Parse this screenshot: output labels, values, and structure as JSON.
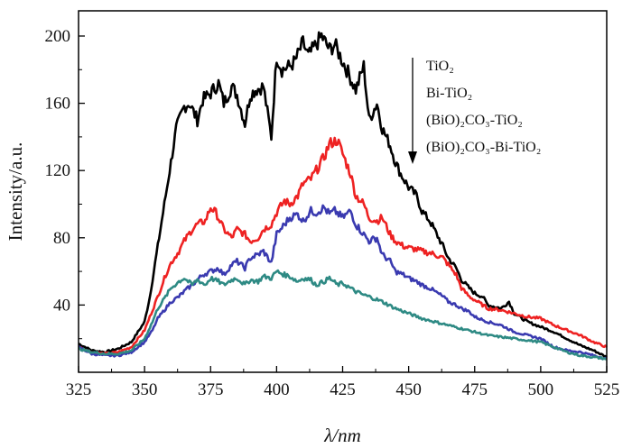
{
  "chart_data": {
    "type": "line",
    "xlabel": "λ/nm",
    "ylabel": "Intensity/a.u.",
    "xlim": [
      325,
      525
    ],
    "ylim": [
      0,
      215
    ],
    "xticks": [
      325,
      350,
      375,
      400,
      425,
      450,
      475,
      500,
      525
    ],
    "yticks": [
      40,
      80,
      120,
      160,
      200
    ],
    "legend_placement": "top-right",
    "legend_arrow": "down",
    "series": [
      {
        "name": "TiO₂",
        "color": "#000000",
        "x": [
          325,
          330,
          335,
          340,
          345,
          350,
          352,
          355,
          358,
          360,
          362,
          365,
          367,
          370,
          372,
          375,
          378,
          380,
          383,
          385,
          388,
          390,
          392,
          395,
          398,
          400,
          402,
          405,
          407,
          410,
          412,
          415,
          417,
          420,
          422,
          425,
          428,
          430,
          433,
          435,
          438,
          440,
          443,
          445,
          447,
          450,
          453,
          455,
          458,
          460,
          463,
          465,
          468,
          470,
          473,
          475,
          478,
          480,
          485,
          488,
          490,
          495,
          500,
          505,
          510,
          515,
          520,
          525
        ],
        "y": [
          17,
          13,
          12,
          14,
          18,
          30,
          45,
          75,
          105,
          125,
          145,
          158,
          160,
          150,
          162,
          166,
          172,
          160,
          170,
          165,
          148,
          165,
          168,
          170,
          140,
          188,
          180,
          182,
          185,
          196,
          188,
          195,
          200,
          192,
          195,
          185,
          175,
          168,
          182,
          150,
          160,
          145,
          135,
          125,
          118,
          110,
          105,
          96,
          90,
          84,
          75,
          68,
          62,
          55,
          50,
          47,
          45,
          40,
          38,
          42,
          35,
          30,
          27,
          24,
          20,
          16,
          13,
          9
        ]
      },
      {
        "name": "Bi-TiO₂",
        "color": "#ee2222",
        "x": [
          325,
          330,
          335,
          340,
          345,
          350,
          355,
          358,
          360,
          363,
          365,
          368,
          370,
          373,
          375,
          377,
          380,
          383,
          385,
          388,
          390,
          393,
          395,
          398,
          400,
          403,
          405,
          408,
          410,
          413,
          415,
          418,
          420,
          423,
          425,
          428,
          430,
          433,
          435,
          438,
          440,
          443,
          445,
          448,
          450,
          453,
          455,
          458,
          460,
          463,
          465,
          468,
          470,
          473,
          475,
          478,
          480,
          485,
          490,
          495,
          500,
          505,
          510,
          515,
          520,
          525
        ],
        "y": [
          15,
          12,
          11,
          12,
          15,
          25,
          45,
          58,
          65,
          72,
          78,
          85,
          88,
          90,
          98,
          95,
          85,
          80,
          85,
          82,
          78,
          80,
          85,
          88,
          95,
          102,
          100,
          105,
          112,
          115,
          120,
          128,
          136,
          138,
          130,
          118,
          105,
          100,
          92,
          90,
          92,
          82,
          78,
          75,
          74,
          73,
          72,
          71,
          70,
          68,
          64,
          58,
          50,
          45,
          43,
          40,
          38,
          37,
          35,
          33,
          32,
          28,
          25,
          22,
          18,
          15
        ]
      },
      {
        "name": "(BiO)₂CO₃-TiO₂",
        "color": "#3a3ab0",
        "x": [
          325,
          330,
          335,
          340,
          345,
          350,
          353,
          355,
          358,
          360,
          363,
          365,
          368,
          370,
          372,
          375,
          378,
          380,
          383,
          385,
          388,
          390,
          393,
          395,
          398,
          400,
          403,
          405,
          408,
          410,
          413,
          415,
          418,
          420,
          422,
          425,
          428,
          430,
          433,
          435,
          438,
          440,
          443,
          445,
          448,
          450,
          453,
          455,
          458,
          460,
          463,
          465,
          468,
          470,
          473,
          475,
          480,
          485,
          490,
          495,
          500,
          505,
          510,
          515,
          520,
          525
        ],
        "y": [
          15,
          11,
          10,
          10,
          12,
          18,
          25,
          32,
          38,
          42,
          45,
          48,
          52,
          55,
          58,
          60,
          62,
          58,
          64,
          66,
          62,
          68,
          70,
          72,
          65,
          82,
          88,
          92,
          94,
          90,
          96,
          95,
          98,
          94,
          96,
          92,
          96,
          88,
          82,
          78,
          80,
          70,
          66,
          60,
          58,
          56,
          54,
          52,
          50,
          48,
          45,
          42,
          40,
          38,
          36,
          33,
          30,
          28,
          24,
          22,
          20,
          15,
          13,
          12,
          10,
          8
        ]
      },
      {
        "name": "(BiO)₂CO₃-Bi-TiO₂",
        "color": "#2e8a84",
        "x": [
          325,
          330,
          335,
          340,
          345,
          350,
          353,
          355,
          358,
          360,
          363,
          365,
          368,
          370,
          373,
          375,
          378,
          380,
          383,
          385,
          388,
          390,
          393,
          395,
          398,
          400,
          403,
          405,
          408,
          410,
          413,
          415,
          418,
          420,
          423,
          425,
          428,
          430,
          433,
          435,
          440,
          445,
          450,
          455,
          460,
          465,
          470,
          475,
          480,
          485,
          490,
          495,
          500,
          505,
          510,
          515,
          520,
          525
        ],
        "y": [
          14,
          12,
          11,
          11,
          13,
          20,
          30,
          38,
          45,
          50,
          54,
          56,
          52,
          55,
          52,
          56,
          54,
          52,
          55,
          56,
          52,
          55,
          54,
          57,
          56,
          60,
          58,
          57,
          54,
          56,
          55,
          52,
          54,
          56,
          52,
          53,
          50,
          48,
          46,
          45,
          42,
          38,
          35,
          32,
          30,
          28,
          26,
          24,
          22,
          21,
          20,
          19,
          18,
          15,
          12,
          10,
          9,
          8
        ]
      }
    ]
  }
}
